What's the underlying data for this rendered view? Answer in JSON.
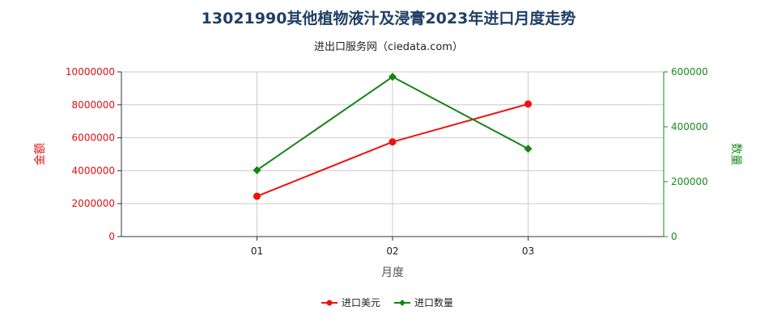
{
  "title": "13021990其他植物液汁及浸膏2023年进口月度走势",
  "subtitle": "进出口服务网（ciedata.com）",
  "colors": {
    "left_axis": "#e01010",
    "right_axis": "#1a8a1a",
    "series_1": "#ee1111",
    "series_2": "#148414",
    "grid": "#cccccc",
    "axis": "#333333"
  },
  "chart_data": {
    "type": "line",
    "title": "13021990其他植物液汁及浸膏2023年进口月度走势",
    "subtitle": "进出口服务网（ciedata.com）",
    "xlabel": "月度",
    "categories": [
      "01",
      "02",
      "03"
    ],
    "y_left": {
      "label": "金额",
      "range": [
        0,
        10000000
      ],
      "ticks": [
        "0",
        "2000000",
        "4000000",
        "6000000",
        "8000000",
        "10000000"
      ]
    },
    "y_right": {
      "label": "数量",
      "range": [
        0,
        600000
      ],
      "ticks": [
        "0",
        "200000",
        "400000",
        "600000"
      ]
    },
    "series": [
      {
        "name": "进口美元",
        "axis": "left",
        "values": [
          2450000,
          5750000,
          8050000
        ]
      },
      {
        "name": "进口数量",
        "axis": "right",
        "values": [
          242000,
          582000,
          320000
        ]
      }
    ],
    "grid": true,
    "legend_position": "bottom-center"
  }
}
